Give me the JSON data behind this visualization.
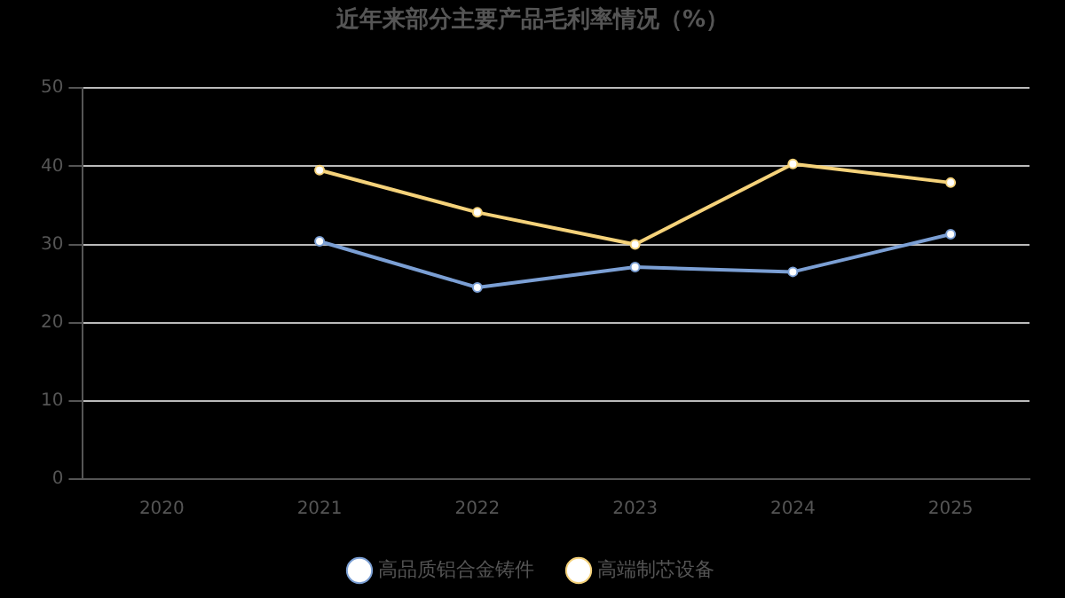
{
  "chart_data": {
    "type": "line",
    "title": "近年来部分主要产品毛利率情况（%）",
    "categories": [
      "2020",
      "2021",
      "2022",
      "2023",
      "2024",
      "2025"
    ],
    "series": [
      {
        "name": "高品质铝合金铸件",
        "color": "#7b9fd4",
        "values": [
          null,
          30.4,
          24.5,
          27.1,
          26.5,
          31.3
        ]
      },
      {
        "name": "高端制芯设备",
        "color": "#f5d27a",
        "values": [
          null,
          39.5,
          34.1,
          30.0,
          40.3,
          37.9
        ]
      }
    ],
    "ylim": [
      0,
      50
    ],
    "yticks": [
      0,
      10,
      20,
      30,
      40,
      50
    ],
    "grid": "y",
    "legend": "bottom",
    "marker": "circle",
    "line_style": "solid"
  }
}
